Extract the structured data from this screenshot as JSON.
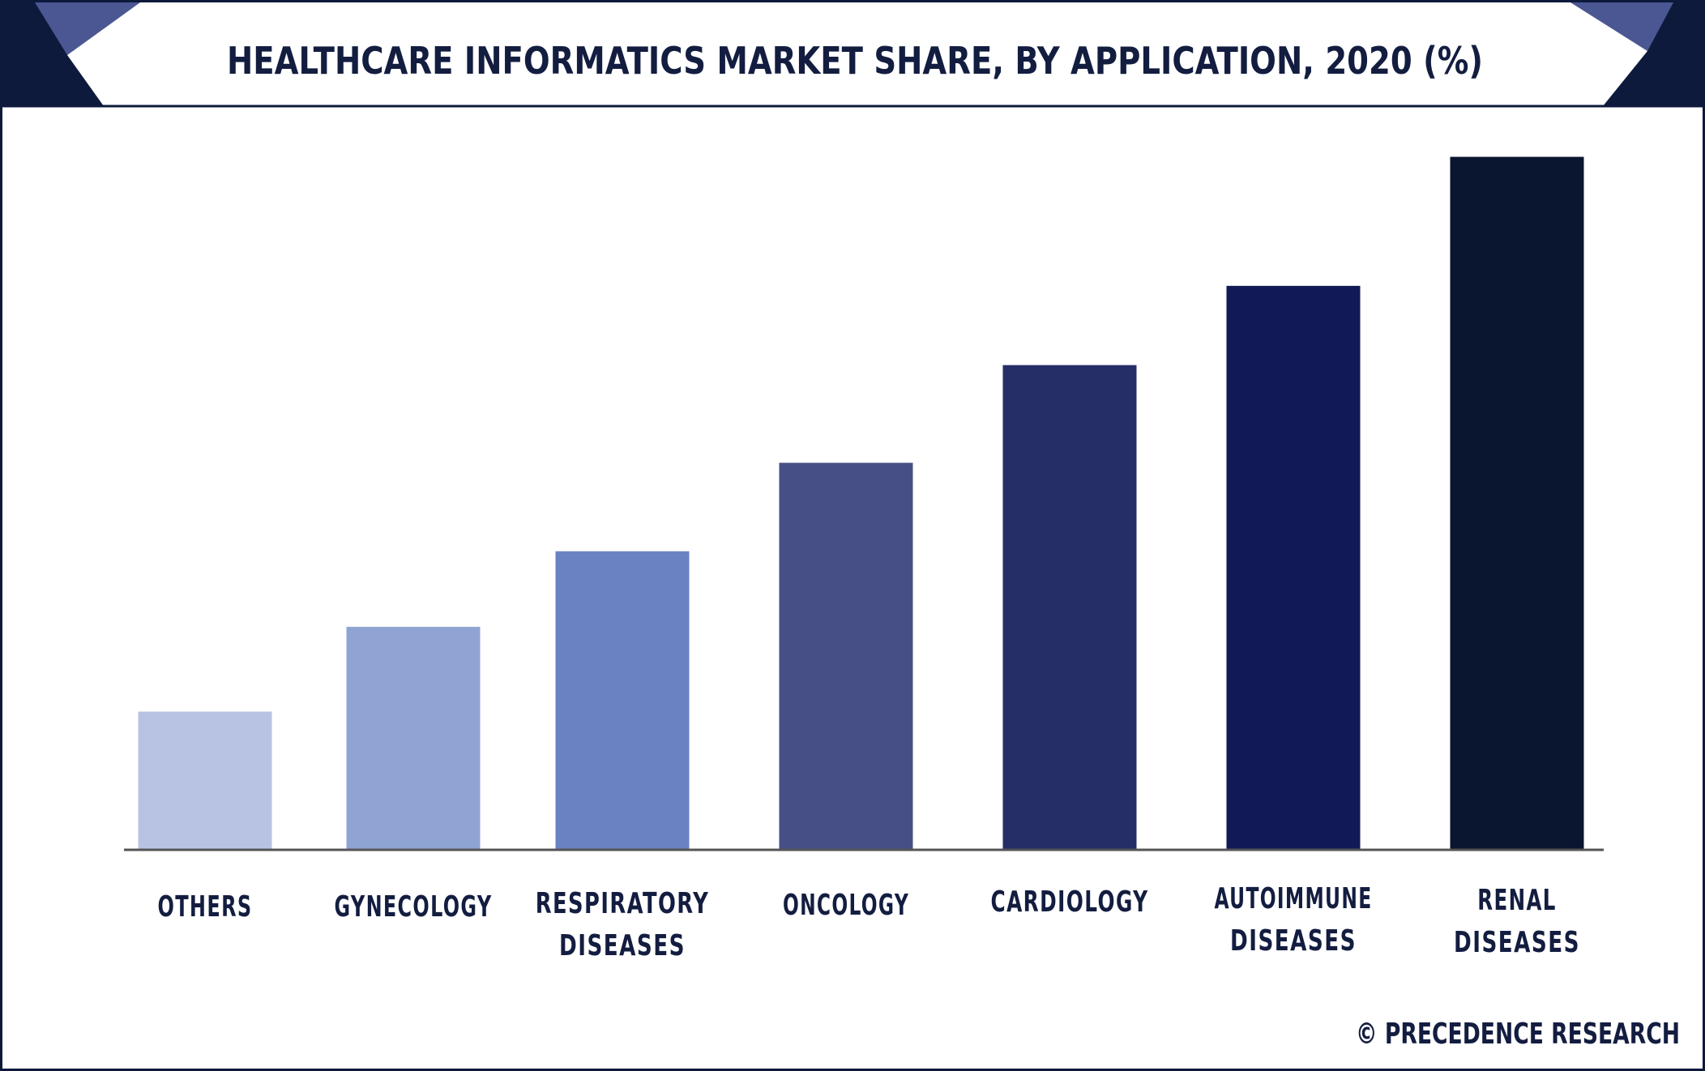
{
  "title": "HEALTHCARE INFORMATICS MARKET SHARE, BY APPLICATION, 2020 (%)",
  "watermark": "© PRECEDENCE RESEARCH",
  "colors": {
    "frame": "#0e1a3c",
    "title_text": "#131d40",
    "title_bar_dark": "#0e1a3c",
    "title_bar_accent": "#4b5792",
    "axis": "#555555",
    "label_text": "#131d40"
  },
  "chart_data": {
    "type": "bar",
    "title": "HEALTHCARE INFORMATICS MARKET SHARE, BY APPLICATION, 2020 (%)",
    "xlabel": "",
    "ylabel": "",
    "categories": [
      [
        "OTHERS"
      ],
      [
        "GYNECOLOGY"
      ],
      [
        "RESPIRATORY",
        "DISEASES"
      ],
      [
        "ONCOLOGY"
      ],
      [
        "CARDIOLOGY"
      ],
      [
        "AUTOIMMUNE",
        "DISEASES"
      ],
      [
        "RENAL",
        "DISEASES"
      ]
    ],
    "values": [
      7.5,
      12.1,
      16.2,
      21.0,
      26.3,
      30.6,
      37.6
    ],
    "bar_colors": [
      "#b8c3e4",
      "#8fa4d2",
      "#6a82c2",
      "#465087",
      "#252e66",
      "#111a54",
      "#0a1530"
    ],
    "ylim": [
      0,
      40
    ],
    "grid": false,
    "legend": "none"
  }
}
